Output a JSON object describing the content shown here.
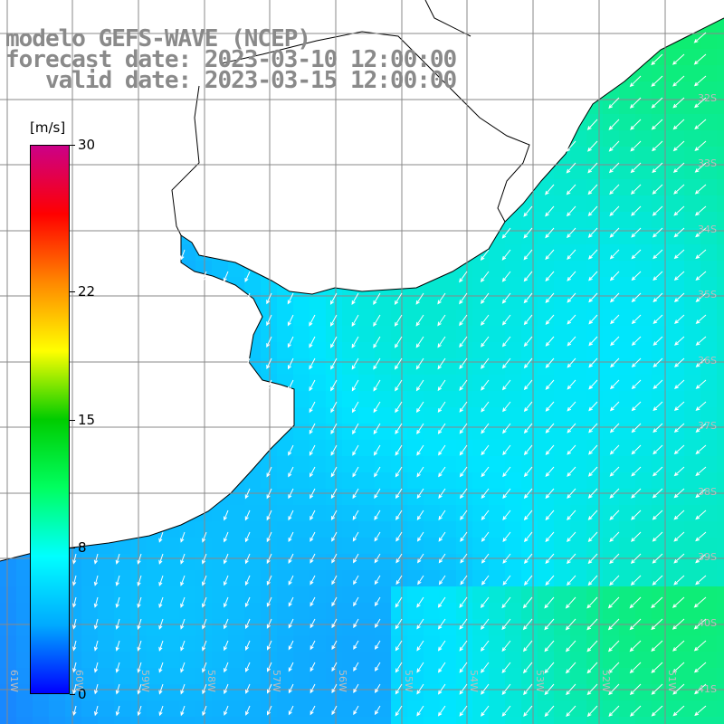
{
  "title": {
    "line1": "modelo GEFS-WAVE (NCEP)",
    "line2": "forecast date: 2023-03-10 12:00:00",
    "line3": "   valid date: 2023-03-15 12:00:00"
  },
  "colorbar": {
    "unit": "[m/s]",
    "ticks": [
      "30",
      "22",
      "15",
      "8",
      "0"
    ],
    "tick_values": [
      30,
      22,
      15,
      8,
      0
    ],
    "min": 0,
    "max": 30,
    "colors": [
      "#0000ff",
      "#00aaff",
      "#00ffff",
      "#00ff60",
      "#00cc00",
      "#ffff00",
      "#ff8800",
      "#ff0000",
      "#cc0088"
    ]
  },
  "map": {
    "lat_labels": [
      "32S",
      "33S",
      "34S",
      "35S",
      "36S",
      "37S",
      "38S",
      "39S",
      "40S",
      "41S"
    ],
    "lon_labels": [
      "61W",
      "60W",
      "59W",
      "58W",
      "57W",
      "56W",
      "55W",
      "54W",
      "53W",
      "52W",
      "51W"
    ],
    "grid_lines": true,
    "land_color": "#ffffff",
    "arrow_color": "#ffffff"
  }
}
